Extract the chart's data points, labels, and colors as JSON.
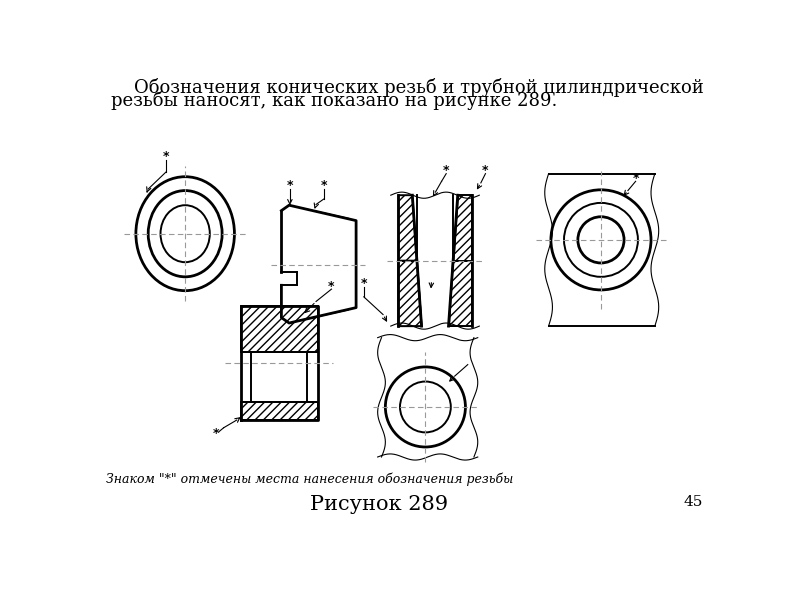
{
  "title_line1": "    Обозначения конических резьб и трубной цилиндрической",
  "title_line2": "резьбы наносят, как показано на рисунке 289.",
  "caption": "Рисунок 289",
  "footnote": "Знаком \"*\" отмечены места нанесения обозначения резьбы",
  "page_num": "45",
  "bg_color": "#ffffff",
  "line_color": "#000000",
  "dash_color": "#999999"
}
